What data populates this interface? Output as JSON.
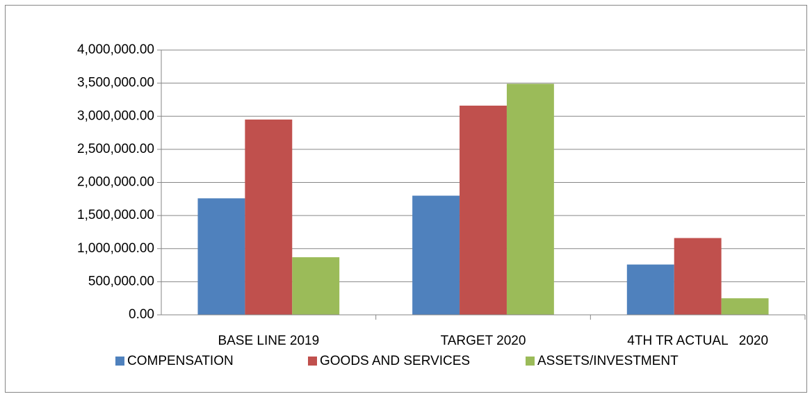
{
  "chart_data": {
    "type": "bar",
    "categories": [
      "BASE LINE 2019",
      "TARGET 2020",
      "4TH TR ACTUAL   2020"
    ],
    "series": [
      {
        "name": "COMPENSATION",
        "color": "#4f81bd",
        "values": [
          1760000,
          1800000,
          760000
        ]
      },
      {
        "name": "GOODS AND SERVICES",
        "color": "#c0504d",
        "values": [
          2950000,
          3160000,
          1160000
        ]
      },
      {
        "name": "ASSETS/INVESTMENT",
        "color": "#9bbb59",
        "values": [
          870000,
          3490000,
          250000
        ]
      }
    ],
    "ylim": [
      0,
      4000000
    ],
    "yticks": [
      {
        "value": 0,
        "label": "0.00"
      },
      {
        "value": 500000,
        "label": "500,000.00"
      },
      {
        "value": 1000000,
        "label": "1,000,000.00"
      },
      {
        "value": 1500000,
        "label": "1,500,000.00"
      },
      {
        "value": 2000000,
        "label": "2,000,000.00"
      },
      {
        "value": 2500000,
        "label": "2,500,000.00"
      },
      {
        "value": 3000000,
        "label": "3,000,000.00"
      },
      {
        "value": 3500000,
        "label": "3,500,000.00"
      },
      {
        "value": 4000000,
        "label": "4,000,000.00"
      }
    ],
    "grid": true,
    "legend": "bottom"
  }
}
